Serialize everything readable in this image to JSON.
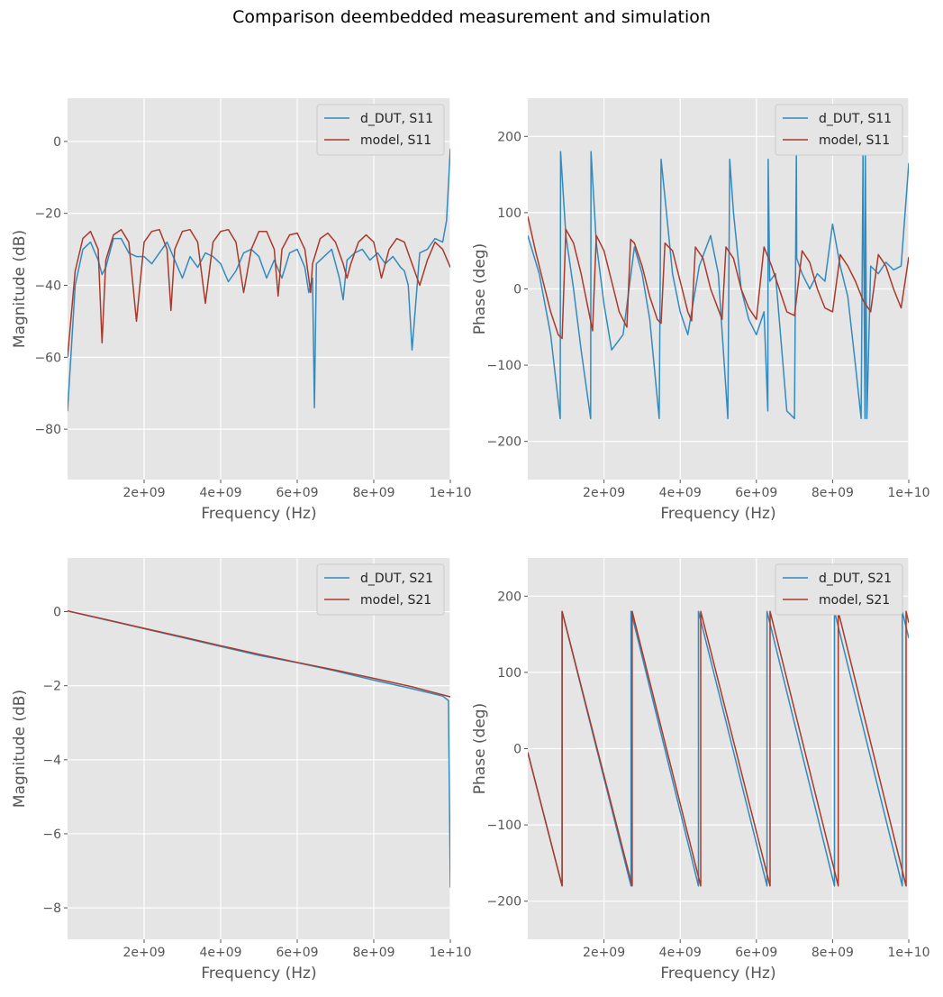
{
  "figure": {
    "title": "Comparison deembedded measurement and simulation"
  },
  "colors": {
    "measurement": "#348abd",
    "model": "#a83a2c",
    "axes_bg": "#e5e5e5",
    "grid": "#ffffff",
    "tick_text": "#555555"
  },
  "chart_data": [
    {
      "type": "line",
      "id": "s11_mag",
      "xlabel": "Frequency (Hz)",
      "ylabel": "Magnitude (dB)",
      "xlim": [
        0,
        10000000000
      ],
      "ylim": [
        -94,
        12
      ],
      "xticks": [
        2000000000,
        4000000000,
        6000000000,
        8000000000,
        10000000000
      ],
      "xtick_labels": [
        "2e+09",
        "4e+09",
        "6e+09",
        "8e+09",
        "1e+10"
      ],
      "yticks": [
        -80,
        -60,
        -40,
        -20,
        0
      ],
      "ytick_labels": [
        "−80",
        "−60",
        "−40",
        "−20",
        "0"
      ],
      "grid": true,
      "legend_position": "top-right",
      "series": [
        {
          "name": "d_DUT, S11",
          "x": [
            0,
            200000000,
            400000000,
            600000000,
            800000000,
            900000000,
            1000000000,
            1200000000,
            1400000000,
            1600000000,
            1800000000,
            2000000000,
            2200000000,
            2400000000,
            2600000000,
            2800000000,
            3000000000,
            3200000000,
            3400000000,
            3600000000,
            3800000000,
            4000000000,
            4200000000,
            4400000000,
            4600000000,
            4800000000,
            5000000000,
            5200000000,
            5400000000,
            5600000000,
            5800000000,
            6000000000,
            6200000000,
            6300000000,
            6400000000,
            6450000000,
            6500000000,
            6700000000,
            6900000000,
            7100000000,
            7200000000,
            7300000000,
            7500000000,
            7700000000,
            7900000000,
            8100000000,
            8300000000,
            8500000000,
            8700000000,
            8800000000,
            8900000000,
            9000000000,
            9200000000,
            9400000000,
            9600000000,
            9800000000,
            9900000000,
            10000000000
          ],
          "y": [
            -75,
            -40,
            -30,
            -28,
            -33,
            -37,
            -35,
            -27,
            -27,
            -31,
            -32,
            -32,
            -34,
            -31,
            -28,
            -33,
            -38,
            -32,
            -35,
            -31,
            -32,
            -34,
            -39,
            -36,
            -31,
            -30,
            -32,
            -38,
            -33,
            -38,
            -31,
            -30,
            -35,
            -42,
            -38,
            -74,
            -34,
            -32,
            -30,
            -38,
            -44,
            -33,
            -31,
            -30,
            -33,
            -31,
            -34,
            -32,
            -35,
            -36,
            -40,
            -58,
            -31,
            -30,
            -27,
            -28,
            -22,
            -2
          ]
        },
        {
          "name": "model, S11",
          "x": [
            0,
            200000000,
            400000000,
            600000000,
            800000000,
            900000000,
            1000000000,
            1200000000,
            1400000000,
            1600000000,
            1800000000,
            2000000000,
            2200000000,
            2400000000,
            2600000000,
            2700000000,
            2800000000,
            3000000000,
            3200000000,
            3400000000,
            3600000000,
            3800000000,
            4000000000,
            4200000000,
            4400000000,
            4600000000,
            4800000000,
            5000000000,
            5200000000,
            5400000000,
            5500000000,
            5600000000,
            5800000000,
            6000000000,
            6200000000,
            6350000000,
            6400000000,
            6600000000,
            6800000000,
            7000000000,
            7200000000,
            7300000000,
            7400000000,
            7600000000,
            7800000000,
            8000000000,
            8200000000,
            8400000000,
            8600000000,
            8800000000,
            9000000000,
            9200000000,
            9400000000,
            9600000000,
            9800000000,
            10000000000
          ],
          "y": [
            -60,
            -36,
            -27,
            -25,
            -30,
            -56,
            -33,
            -26,
            -24.5,
            -28,
            -50,
            -28,
            -25,
            -24.5,
            -30,
            -47,
            -30,
            -25,
            -24.5,
            -28,
            -45,
            -28,
            -25,
            -24.5,
            -28,
            -42,
            -30,
            -25,
            -25,
            -30,
            -43,
            -30,
            -26,
            -25.5,
            -30,
            -42,
            -34,
            -27,
            -25.5,
            -28,
            -34,
            -38,
            -34,
            -28,
            -26,
            -28,
            -38,
            -30,
            -27,
            -28,
            -34,
            -40,
            -33,
            -28,
            -30,
            -35
          ]
        }
      ]
    },
    {
      "type": "line",
      "id": "s11_phase",
      "xlabel": "Frequency (Hz)",
      "ylabel": "Phase (deg)",
      "xlim": [
        0,
        10000000000
      ],
      "ylim": [
        -250,
        250
      ],
      "xticks": [
        2000000000,
        4000000000,
        6000000000,
        8000000000,
        10000000000
      ],
      "xtick_labels": [
        "2e+09",
        "4e+09",
        "6e+09",
        "8e+09",
        "1e+10"
      ],
      "yticks": [
        -200,
        -100,
        0,
        100,
        200
      ],
      "ytick_labels": [
        "−200",
        "−100",
        "0",
        "100",
        "200"
      ],
      "grid": true,
      "legend_position": "top-right",
      "series": [
        {
          "name": "d_DUT, S11",
          "x": [
            0,
            300000000,
            600000000,
            850000000,
            860000000,
            1000000000,
            1200000000,
            1400000000,
            1650000000,
            1660000000,
            1800000000,
            2000000000,
            2200000000,
            2500000000,
            2800000000,
            3000000000,
            3200000000,
            3450000000,
            3500000000,
            3600000000,
            3800000000,
            4000000000,
            4200000000,
            4500000000,
            4800000000,
            5000000000,
            5250000000,
            5300000000,
            5400000000,
            5600000000,
            5800000000,
            6000000000,
            6200000000,
            6300000000,
            6310000000,
            6350000000,
            6500000000,
            6700000000,
            6800000000,
            7000000000,
            7050000000,
            7060000000,
            7200000000,
            7400000000,
            7600000000,
            7800000000,
            8000000000,
            8200000000,
            8400000000,
            8600000000,
            8750000000,
            8800000000,
            8850000000,
            8860000000,
            8900000000,
            9000000000,
            9200000000,
            9400000000,
            9600000000,
            9800000000,
            10000000000
          ],
          "y": [
            70,
            20,
            -60,
            -170,
            180,
            70,
            0,
            -80,
            -170,
            180,
            60,
            -20,
            -80,
            -60,
            55,
            20,
            -40,
            -170,
            170,
            120,
            20,
            -30,
            -60,
            30,
            70,
            20,
            -170,
            170,
            100,
            0,
            -40,
            -60,
            -30,
            -160,
            170,
            10,
            20,
            -100,
            -160,
            -170,
            180,
            40,
            20,
            0,
            20,
            10,
            85,
            30,
            -10,
            -100,
            -170,
            180,
            -170,
            180,
            -170,
            30,
            20,
            35,
            25,
            30,
            165
          ]
        },
        {
          "name": "model, S11",
          "x": [
            0,
            200000000,
            400000000,
            600000000,
            800000000,
            900000000,
            1000000000,
            1200000000,
            1400000000,
            1600000000,
            1700000000,
            1800000000,
            2000000000,
            2200000000,
            2400000000,
            2600000000,
            2700000000,
            2800000000,
            3000000000,
            3200000000,
            3400000000,
            3500000000,
            3600000000,
            3800000000,
            4000000000,
            4200000000,
            4300000000,
            4400000000,
            4600000000,
            4800000000,
            5100000000,
            5200000000,
            5400000000,
            5600000000,
            5800000000,
            6000000000,
            6200000000,
            6400000000,
            6600000000,
            6800000000,
            7000000000,
            7200000000,
            7400000000,
            7600000000,
            7800000000,
            8000000000,
            8200000000,
            8400000000,
            8600000000,
            8800000000,
            9000000000,
            9200000000,
            9400000000,
            9600000000,
            9800000000,
            10000000000
          ],
          "y": [
            95,
            50,
            10,
            -30,
            -60,
            -65,
            78,
            60,
            20,
            -30,
            -55,
            70,
            50,
            10,
            -30,
            -50,
            65,
            60,
            30,
            -10,
            -40,
            -45,
            60,
            50,
            10,
            -30,
            -42,
            55,
            40,
            0,
            -40,
            55,
            40,
            0,
            -25,
            -40,
            55,
            30,
            0,
            -30,
            -35,
            50,
            35,
            0,
            -25,
            -30,
            45,
            30,
            10,
            -15,
            -30,
            45,
            30,
            0,
            -25,
            42
          ]
        }
      ]
    },
    {
      "type": "line",
      "id": "s21_mag",
      "xlabel": "Frequency (Hz)",
      "ylabel": "Magnitude (dB)",
      "xlim": [
        0,
        10000000000
      ],
      "ylim": [
        -8.85,
        1.45
      ],
      "xticks": [
        2000000000,
        4000000000,
        6000000000,
        8000000000,
        10000000000
      ],
      "xtick_labels": [
        "2e+09",
        "4e+09",
        "6e+09",
        "8e+09",
        "1e+10"
      ],
      "yticks": [
        -8,
        -6,
        -4,
        -2,
        0
      ],
      "ytick_labels": [
        "−8",
        "−6",
        "−4",
        "−2",
        "0"
      ],
      "grid": true,
      "legend_position": "top-right",
      "series": [
        {
          "name": "d_DUT, S21",
          "x": [
            0,
            1000000000,
            2000000000,
            3000000000,
            4000000000,
            5000000000,
            6000000000,
            7000000000,
            8000000000,
            9000000000,
            9800000000,
            9950000000,
            10000000000
          ],
          "y": [
            0.02,
            -0.22,
            -0.46,
            -0.7,
            -0.94,
            -1.18,
            -1.38,
            -1.6,
            -1.85,
            -2.08,
            -2.28,
            -2.4,
            -7.45
          ]
        },
        {
          "name": "model, S21",
          "x": [
            0,
            1000000000,
            2000000000,
            3000000000,
            4000000000,
            5000000000,
            6000000000,
            7000000000,
            8000000000,
            9000000000,
            10000000000
          ],
          "y": [
            0.02,
            -0.21,
            -0.45,
            -0.68,
            -0.92,
            -1.15,
            -1.37,
            -1.58,
            -1.8,
            -2.03,
            -2.3
          ]
        }
      ]
    },
    {
      "type": "line",
      "id": "s21_phase",
      "xlabel": "Frequency (Hz)",
      "ylabel": "Phase (deg)",
      "xlim": [
        0,
        10000000000
      ],
      "ylim": [
        -250,
        250
      ],
      "xticks": [
        2000000000,
        4000000000,
        6000000000,
        8000000000,
        10000000000
      ],
      "xtick_labels": [
        "2e+09",
        "4e+09",
        "6e+09",
        "8e+09",
        "1e+10"
      ],
      "yticks": [
        -200,
        -100,
        0,
        100,
        200
      ],
      "ytick_labels": [
        "−200",
        "−100",
        "0",
        "100",
        "200"
      ],
      "grid": true,
      "legend_position": "top-right",
      "series": [
        {
          "name": "d_DUT, S21",
          "x": [
            0,
            900000000,
            900000000,
            2710000000,
            2710000000,
            4480000000,
            4480000000,
            6280000000,
            6280000000,
            8050000000,
            8050000000,
            9830000000,
            9830000000,
            10000000000
          ],
          "y": [
            -5,
            -180,
            180,
            -180,
            180,
            -180,
            180,
            -180,
            180,
            -180,
            180,
            -180,
            180,
            145
          ]
        },
        {
          "name": "model, S21",
          "x": [
            0,
            900000000,
            900000000,
            2740000000,
            2740000000,
            4540000000,
            4540000000,
            6360000000,
            6360000000,
            8150000000,
            8150000000,
            9930000000,
            9930000000,
            10000000000
          ],
          "y": [
            -5,
            -180,
            180,
            -180,
            180,
            -180,
            180,
            -180,
            180,
            -180,
            180,
            -180,
            180,
            165
          ]
        }
      ]
    }
  ]
}
